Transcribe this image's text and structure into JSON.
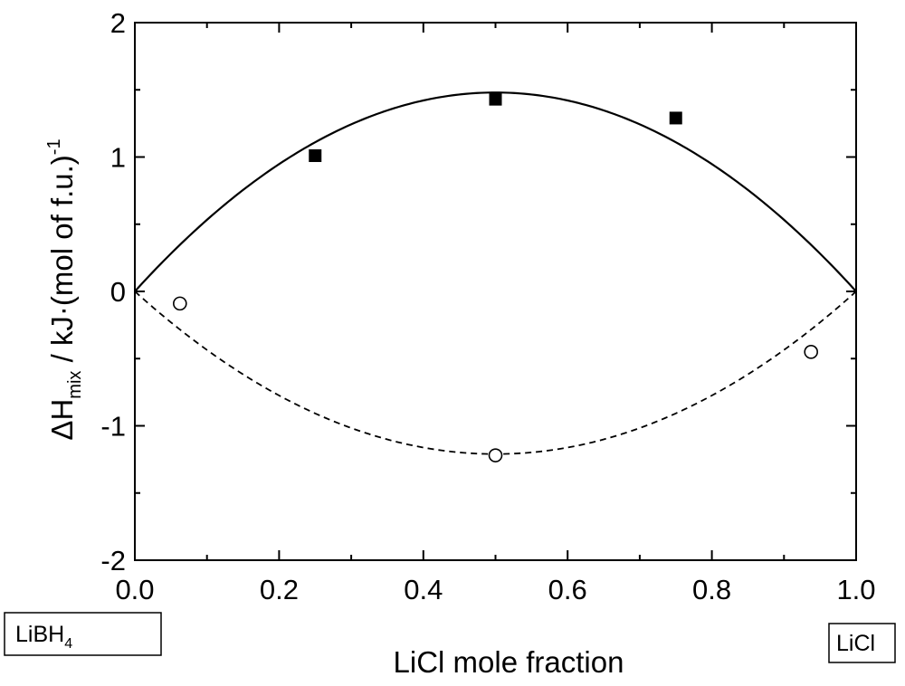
{
  "chart_data": {
    "type": "scatter",
    "xlabel": "LiCl mole fraction",
    "ylabel": {
      "prefix": "ΔH",
      "subscript": "mix",
      "suffix": " / kJ·(mol of f.u.)",
      "superscript": "-1"
    },
    "xlim": [
      0.0,
      1.0
    ],
    "ylim": [
      -2,
      2
    ],
    "x_ticks": [
      {
        "value": 0.0,
        "label": "0.0"
      },
      {
        "value": 0.2,
        "label": "0.2"
      },
      {
        "value": 0.4,
        "label": "0.4"
      },
      {
        "value": 0.6,
        "label": "0.6"
      },
      {
        "value": 0.8,
        "label": "0.8"
      },
      {
        "value": 1.0,
        "label": "1.0"
      }
    ],
    "x_minor_ticks": [
      0.1,
      0.3,
      0.5,
      0.7,
      0.9
    ],
    "y_ticks": [
      {
        "value": 2,
        "label": "2"
      },
      {
        "value": 1,
        "label": "1"
      },
      {
        "value": 0,
        "label": "0"
      },
      {
        "value": -1,
        "label": "-1"
      },
      {
        "value": -2,
        "label": "-2"
      }
    ],
    "y_minor_ticks": [
      1.5,
      0.5,
      -0.5,
      -1.5
    ],
    "grid": false,
    "series": [
      {
        "name": "filled squares",
        "marker": "filled-square",
        "points": [
          {
            "x": 0.25,
            "y": 1.01
          },
          {
            "x": 0.5,
            "y": 1.43
          },
          {
            "x": 0.75,
            "y": 1.29
          }
        ]
      },
      {
        "name": "open circles",
        "marker": "open-circle",
        "points": [
          {
            "x": 0.0625,
            "y": -0.09
          },
          {
            "x": 0.5,
            "y": -1.22
          },
          {
            "x": 0.9375,
            "y": -0.45
          }
        ]
      }
    ],
    "fit_curves": [
      {
        "name": "solid fit",
        "style": "solid",
        "function": "4*a*x*(1-x)",
        "a": 1.48
      },
      {
        "name": "dashed fit",
        "style": "dashed",
        "function": "4*a*x*(1-x)",
        "a": -1.21
      }
    ],
    "end_labels": {
      "left": {
        "main": "LiBH",
        "subscript": "4"
      },
      "right": {
        "main": "LiCl"
      }
    }
  }
}
